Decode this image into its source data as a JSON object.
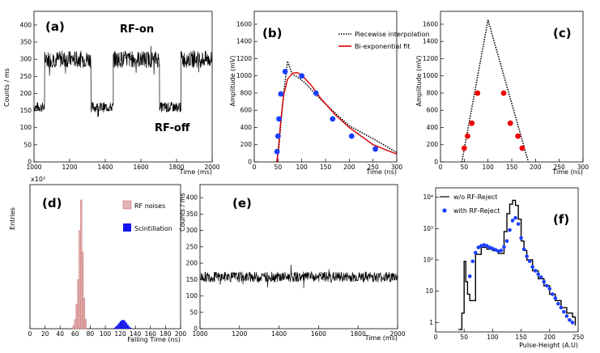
{
  "chart_data": [
    {
      "id": "a",
      "type": "line",
      "label": "(a)",
      "xlabel": "Time (ms)",
      "ylabel": "Counts / ms",
      "xlim": [
        1000,
        2000
      ],
      "ylim": [
        0,
        440
      ],
      "xticks": [
        1000,
        1200,
        1400,
        1600,
        1800,
        2000
      ],
      "yticks": [
        0,
        50,
        100,
        150,
        200,
        250,
        300,
        350,
        400
      ],
      "annotations": [
        {
          "text": "RF-on",
          "x": 1450,
          "y": 395
        },
        {
          "text": "RF-off",
          "x": 1680,
          "y": 65
        }
      ],
      "segments": [
        {
          "from": 1000,
          "to": 1060,
          "level": 160,
          "noise": 15
        },
        {
          "from": 1060,
          "to": 1320,
          "level": 300,
          "noise": 25
        },
        {
          "from": 1320,
          "to": 1445,
          "level": 160,
          "noise": 15
        },
        {
          "from": 1445,
          "to": 1705,
          "level": 300,
          "noise": 25
        },
        {
          "from": 1705,
          "to": 1825,
          "level": 160,
          "noise": 15
        },
        {
          "from": 1825,
          "to": 2000,
          "level": 300,
          "noise": 25
        }
      ]
    },
    {
      "id": "b",
      "type": "line",
      "label": "(b)",
      "xlabel": "Time (ns)",
      "ylabel": "Amplitude (mV)",
      "xlim": [
        0,
        300
      ],
      "ylim": [
        0,
        1750
      ],
      "xticks": [
        0,
        50,
        100,
        150,
        200,
        250,
        300
      ],
      "yticks": [
        0,
        200,
        400,
        600,
        800,
        1000,
        1200,
        1400,
        1600
      ],
      "series": [
        {
          "name": "Piecewise interpolation",
          "style": "dotted",
          "color": "#000000",
          "x": [
            47,
            52,
            56,
            62,
            70,
            80,
            90,
            100,
            110,
            130,
            160,
            200,
            250,
            300
          ],
          "y": [
            0,
            170,
            450,
            800,
            1170,
            1020,
            990,
            950,
            900,
            780,
            620,
            420,
            270,
            110
          ]
        },
        {
          "name": "Bi-exponential fit",
          "style": "solid",
          "color": "#dd0000",
          "x": [
            48,
            52,
            56,
            62,
            70,
            80,
            90,
            100,
            120,
            140,
            170,
            200,
            250,
            300
          ],
          "y": [
            0,
            230,
            500,
            780,
            960,
            1030,
            1040,
            1010,
            890,
            740,
            550,
            400,
            200,
            90
          ]
        }
      ],
      "points": {
        "color": "#1a3fff",
        "x": [
          48,
          50,
          52,
          56,
          65,
          100,
          130,
          165,
          205,
          255
        ],
        "y": [
          120,
          300,
          500,
          790,
          1050,
          1000,
          800,
          500,
          300,
          150
        ]
      }
    },
    {
      "id": "c",
      "type": "line",
      "label": "(c)",
      "xlabel": "Time (ns)",
      "ylabel": "Amplitude (mV)",
      "xlim": [
        0,
        300
      ],
      "ylim": [
        0,
        1750
      ],
      "xticks": [
        0,
        50,
        100,
        150,
        200,
        250,
        300
      ],
      "yticks": [
        0,
        200,
        400,
        600,
        800,
        1000,
        1200,
        1400,
        1600
      ],
      "series": [
        {
          "name": "triangle",
          "style": "dotted",
          "color": "#000000",
          "x": [
            45,
            100,
            185
          ],
          "y": [
            0,
            1650,
            0
          ]
        }
      ],
      "points": {
        "color": "#ee0000",
        "x": [
          50,
          57,
          66,
          78,
          133,
          147,
          163,
          172
        ],
        "y": [
          160,
          300,
          450,
          800,
          800,
          450,
          300,
          160
        ]
      }
    },
    {
      "id": "d",
      "type": "bar",
      "label": "(d)",
      "xlabel": "Falling Time (ns)",
      "ylabel": "Entries",
      "exponent": "x10³",
      "xlim": [
        0,
        200
      ],
      "ylim": [
        0,
        47
      ],
      "xticks": [
        0,
        20,
        40,
        60,
        80,
        100,
        120,
        140,
        160,
        180,
        200
      ],
      "series": [
        {
          "name": "RF noises",
          "color": "#e08a8a",
          "pattern": "hatch",
          "x": [
            58,
            60,
            62,
            64,
            66,
            68,
            70,
            72,
            74
          ],
          "values": [
            1,
            3,
            8,
            16,
            32,
            42,
            25,
            10,
            3
          ]
        },
        {
          "name": "Scintillation",
          "color": "#1515ee",
          "pattern": "solid",
          "x": [
            112,
            114,
            116,
            118,
            120,
            122,
            124,
            126,
            128,
            130,
            132,
            134
          ],
          "values": [
            0.3,
            0.7,
            1.2,
            1.8,
            2.4,
            2.8,
            2.9,
            2.6,
            2.0,
            1.3,
            0.7,
            0.3
          ]
        }
      ]
    },
    {
      "id": "e",
      "type": "line",
      "label": "(e)",
      "xlabel": "Time (ms)",
      "ylabel": "Counts / ms",
      "xlim": [
        1000,
        2000
      ],
      "ylim": [
        0,
        440
      ],
      "xticks": [
        1000,
        1200,
        1400,
        1600,
        1800,
        2000
      ],
      "yticks": [
        0,
        50,
        100,
        150,
        200,
        250,
        300,
        350,
        400
      ],
      "segments": [
        {
          "from": 1000,
          "to": 2000,
          "level": 158,
          "noise": 16
        }
      ]
    },
    {
      "id": "f",
      "type": "line",
      "label": "(f)",
      "xlabel": "Pulse-Height (A.U)",
      "ylabel": "",
      "scale": "log",
      "xlim": [
        0,
        250
      ],
      "ylim": [
        0.5,
        20000
      ],
      "xticks": [
        0,
        50,
        100,
        150,
        200,
        250
      ],
      "yticks": [
        1,
        10,
        100,
        1000,
        10000
      ],
      "ytick_labels": [
        "1",
        "10",
        "10²",
        "10³",
        "10⁴"
      ],
      "series": [
        {
          "name": "w/o RF-Reject",
          "style": "step",
          "color": "#000000",
          "x": [
            40,
            46,
            50,
            53,
            56,
            60,
            70,
            80,
            90,
            100,
            110,
            120,
            125,
            130,
            135,
            140,
            145,
            150,
            155,
            160,
            170,
            180,
            190,
            200,
            210,
            220,
            230,
            240,
            245
          ],
          "y": [
            0.6,
            2,
            90,
            20,
            8,
            5,
            150,
            250,
            220,
            200,
            160,
            800,
            3000,
            6000,
            8000,
            5500,
            2000,
            400,
            200,
            100,
            45,
            25,
            15,
            8,
            5,
            3,
            2,
            1.5,
            0.8
          ]
        },
        {
          "name": "with RF-Reject",
          "style": "points",
          "color": "#1a3fff",
          "x": [
            60,
            65,
            70,
            75,
            80,
            85,
            90,
            95,
            100,
            105,
            110,
            115,
            120,
            125,
            130,
            135,
            140,
            145,
            150,
            155,
            160,
            165,
            170,
            175,
            180,
            185,
            190,
            195,
            200,
            205,
            210,
            215,
            220,
            225,
            230,
            235,
            240
          ],
          "y": [
            30,
            90,
            170,
            250,
            280,
            300,
            280,
            250,
            230,
            210,
            190,
            200,
            260,
            400,
            900,
            1800,
            2200,
            1400,
            500,
            220,
            130,
            90,
            60,
            45,
            35,
            28,
            20,
            15,
            12,
            8,
            6,
            4,
            3,
            2.2,
            1.6,
            1.2,
            1
          ]
        }
      ]
    }
  ],
  "legend": {
    "b": {
      "dotted": "Piecewise interpolation",
      "solid": "Bi-exponential fit"
    },
    "d": {
      "hatch": "RF noises",
      "solid": "Scintillation"
    },
    "f": {
      "line": "w/o RF-Reject",
      "points": "with RF-Reject"
    }
  }
}
